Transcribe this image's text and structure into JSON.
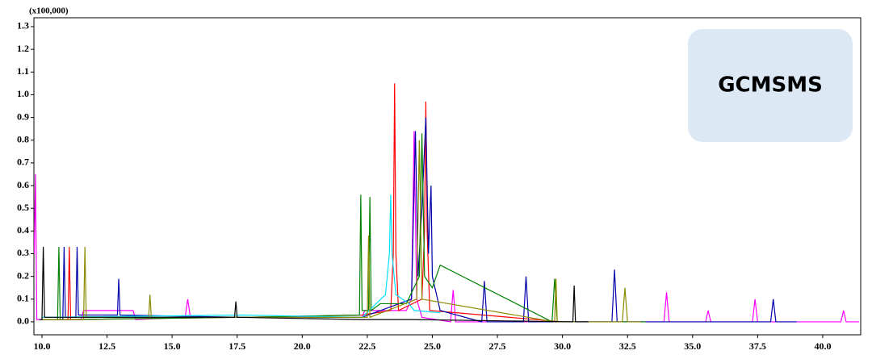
{
  "chart_data": {
    "type": "line",
    "y_unit_label": "(x100,000)",
    "annotation": "GCMSMS",
    "xlim": [
      9.69,
      41.46
    ],
    "ylim": [
      -0.057,
      1.339
    ],
    "xticks": [
      {
        "value": 10,
        "label": "10.0"
      },
      12.5,
      {
        "value": 15,
        "label": "15.0"
      },
      17.5,
      {
        "value": 20,
        "label": "20.0"
      },
      22.5,
      {
        "value": 25,
        "label": "25.0"
      },
      27.5,
      {
        "value": 30,
        "label": "30.0"
      },
      32.5,
      {
        "value": 35,
        "label": "35.0"
      },
      37.5,
      {
        "value": 40,
        "label": "40.0"
      }
    ],
    "yticks": [
      {
        "value": 0,
        "label": "0.0"
      },
      0.1,
      0.2,
      0.3,
      0.4,
      0.5,
      0.6,
      0.7,
      0.8,
      0.9,
      {
        "value": 1,
        "label": "1.0"
      },
      1.1,
      1.2,
      1.3
    ],
    "grid": false,
    "series": [
      {
        "color": "#ff00ff",
        "x": [
          9.7,
          9.75,
          9.8,
          11.5,
          11.6,
          13.5,
          13.6,
          15.5,
          15.6,
          15.7,
          17.5,
          22.3,
          22.4,
          24.0,
          24.2,
          24.3,
          24.4,
          24.6,
          25.7,
          25.8,
          25.9,
          30.0,
          33.9,
          34.0,
          34.1,
          35.5,
          35.6,
          35.7,
          37.3,
          37.4,
          37.5,
          40.7,
          40.8,
          40.9,
          41.4
        ],
        "values": [
          0.3,
          0.65,
          0.01,
          0.01,
          0.05,
          0.05,
          0.01,
          0.02,
          0.1,
          0.02,
          0.02,
          0.02,
          0.05,
          0.05,
          0.1,
          0.84,
          0.1,
          0.02,
          0,
          0.14,
          0,
          0,
          0,
          0.13,
          0,
          0,
          0.05,
          0,
          0,
          0.1,
          0,
          0,
          0.05,
          0,
          0
        ]
      },
      {
        "color": "#ff0000",
        "x": [
          10,
          11.0,
          11.05,
          11.1,
          17.7,
          22.3,
          23.4,
          23.5,
          23.55,
          23.6,
          23.7,
          24.6,
          24.7,
          24.75,
          24.8,
          24.9,
          30
        ],
        "values": [
          0.01,
          0.01,
          0.33,
          0.01,
          0.02,
          0.03,
          0.05,
          0.3,
          1.05,
          0.3,
          0.05,
          0.1,
          0.4,
          0.97,
          0.4,
          0.05,
          0
        ]
      },
      {
        "color": "#0000aa",
        "x": [
          10,
          10.8,
          10.85,
          10.9,
          11.3,
          11.35,
          11.4,
          12.9,
          12.95,
          13.0,
          17.7,
          22.3,
          24.2,
          24.35,
          24.45,
          24.6,
          24.75,
          24.85,
          24.95,
          25.0,
          25.3,
          26.9,
          27.0,
          27.1,
          28.5,
          28.6,
          28.7,
          31.9,
          32.0,
          32.1,
          38.0,
          38.1,
          38.2,
          39
        ],
        "values": [
          0.01,
          0.01,
          0.33,
          0.02,
          0.02,
          0.33,
          0.03,
          0.03,
          0.19,
          0.03,
          0.02,
          0.02,
          0.1,
          0.84,
          0.2,
          0.5,
          0.9,
          0.3,
          0.6,
          0.2,
          0.05,
          0,
          0.18,
          0,
          0,
          0.2,
          0,
          0,
          0.23,
          0,
          0,
          0.1,
          0,
          0
        ]
      },
      {
        "color": "#008000",
        "x": [
          10,
          10.6,
          10.65,
          10.7,
          17.7,
          22.2,
          22.25,
          22.3,
          22.55,
          22.6,
          22.65,
          23,
          24.0,
          24.5,
          24.6,
          24.7,
          25.0,
          25.3,
          29.6,
          29.7,
          29.8,
          33.2
        ],
        "values": [
          0.01,
          0.01,
          0.33,
          0.01,
          0.02,
          0.03,
          0.56,
          0.05,
          0.05,
          0.55,
          0.05,
          0.08,
          0.08,
          0.2,
          0.83,
          0.2,
          0.15,
          0.25,
          0,
          0.19,
          0,
          0
        ]
      },
      {
        "color": "#00e0ff",
        "x": [
          10,
          17.7,
          22.3,
          23.2,
          23.35,
          23.4,
          23.45,
          23.6,
          24.1,
          24.3,
          25.3
        ],
        "values": [
          0.02,
          0.03,
          0.02,
          0.12,
          0.3,
          0.56,
          0.3,
          0.12,
          0.08,
          0.05,
          0.04
        ]
      },
      {
        "color": "#8b8b00",
        "x": [
          10,
          11.6,
          11.65,
          11.7,
          14.1,
          14.15,
          14.2,
          22.5,
          22.55,
          22.6,
          24.4,
          24.5,
          24.6,
          29.7,
          29.75,
          29.8,
          32.3,
          32.4,
          32.5,
          33
        ],
        "values": [
          0.01,
          0.01,
          0.33,
          0.02,
          0.02,
          0.12,
          0.02,
          0.02,
          0.38,
          0.02,
          0.1,
          0.8,
          0.1,
          0,
          0.19,
          0,
          0,
          0.15,
          0,
          0
        ]
      },
      {
        "color": "#000000",
        "x": [
          9.9,
          10.0,
          10.05,
          10.1,
          17.4,
          17.45,
          17.5,
          22.3,
          24.2,
          30.4,
          30.45,
          30.5,
          31.0
        ],
        "values": [
          0.01,
          0.01,
          0.33,
          0.02,
          0.02,
          0.09,
          0.02,
          0.01,
          0.01,
          0,
          0.16,
          0,
          0
        ]
      }
    ]
  }
}
